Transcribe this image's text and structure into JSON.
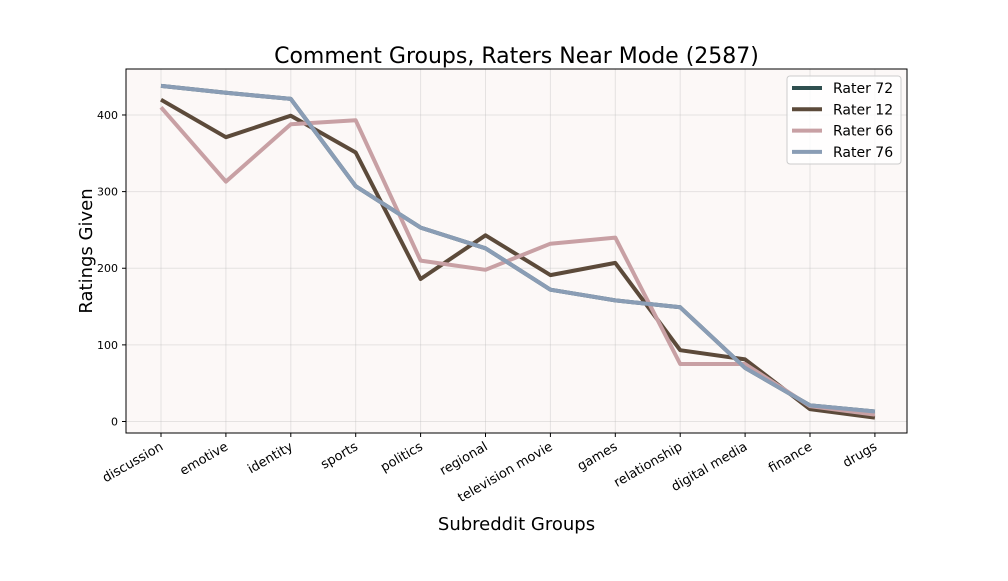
{
  "chart_data": {
    "type": "line",
    "title": "Comment Groups, Raters Near Mode (2587)",
    "xlabel": "Subreddit Groups",
    "ylabel": "Ratings Given",
    "categories": [
      "discussion",
      "emotive",
      "identity",
      "sports",
      "politics",
      "regional",
      "television movie",
      "games",
      "relationship",
      "digital media",
      "finance",
      "drugs"
    ],
    "ylim": [
      -15,
      460
    ],
    "yticks": [
      0,
      100,
      200,
      300,
      400
    ],
    "grid": true,
    "legend_position": "top-right",
    "series": [
      {
        "name": "Rater 72",
        "color": "#2f4f4f",
        "values": [
          438,
          429,
          421,
          307,
          253,
          226,
          172,
          158,
          149,
          70,
          21,
          13
        ]
      },
      {
        "name": "Rater 12",
        "color": "#5c4a3a",
        "values": [
          420,
          371,
          399,
          351,
          186,
          243,
          191,
          207,
          93,
          81,
          16,
          5
        ]
      },
      {
        "name": "Rater 66",
        "color": "#c8a0a4",
        "values": [
          410,
          313,
          388,
          393,
          210,
          198,
          232,
          240,
          75,
          75,
          20,
          9
        ]
      },
      {
        "name": "Rater 76",
        "color": "#8a9db5",
        "values": [
          438,
          429,
          421,
          307,
          253,
          226,
          172,
          158,
          149,
          70,
          21,
          13
        ]
      }
    ]
  }
}
